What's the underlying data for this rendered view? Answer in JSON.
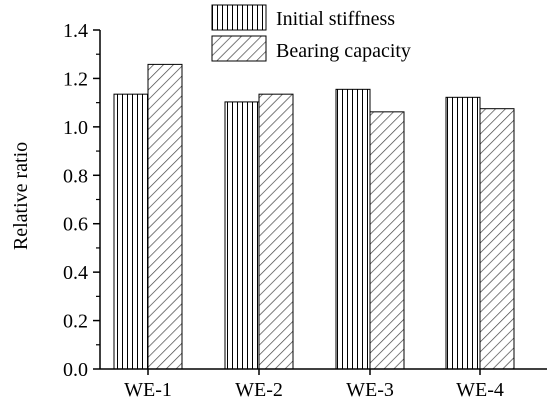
{
  "chart_data": {
    "type": "bar",
    "title": "",
    "xlabel": "",
    "ylabel": "Relative ratio",
    "categories": [
      "WE-1",
      "WE-2",
      "WE-3",
      "WE-4"
    ],
    "series": [
      {
        "name": "Initial stiffness",
        "values": [
          1.135,
          1.103,
          1.155,
          1.122
        ],
        "pattern": "vertical-lines"
      },
      {
        "name": "Bearing capacity",
        "values": [
          1.258,
          1.135,
          1.062,
          1.075
        ],
        "pattern": "diagonal-lines"
      }
    ],
    "ylim": [
      0.0,
      1.4
    ],
    "yticks": [
      "0.0",
      "0.2",
      "0.4",
      "0.6",
      "0.8",
      "1.0",
      "1.2",
      "1.4"
    ],
    "grid": false,
    "legend_position": "top-right",
    "colors": {
      "bar_fill": "#ffffff",
      "hatch": "#000000",
      "axis": "#000000"
    }
  }
}
